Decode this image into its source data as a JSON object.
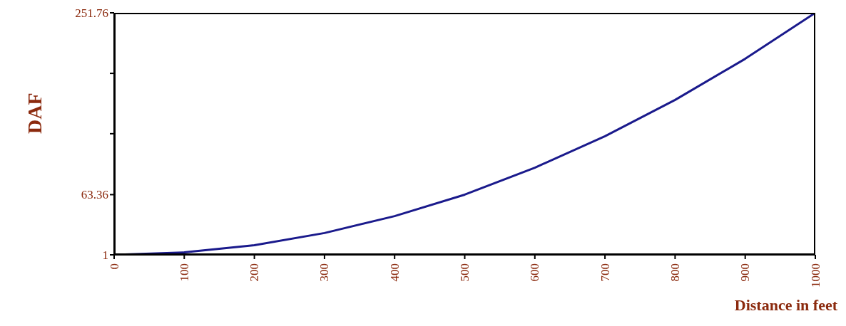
{
  "chart_data": {
    "type": "line",
    "xlabel": "Distance in feet",
    "ylabel": "DAF",
    "x": [
      0,
      100,
      200,
      300,
      400,
      500,
      600,
      700,
      800,
      900,
      1000
    ],
    "series": [
      {
        "color": "#1a1a8c",
        "values": [
          1,
          3.5,
          11,
          23.6,
          41.1,
          63.36,
          91.3,
          123.9,
          161.5,
          204.1,
          251.76
        ]
      }
    ],
    "xlim": [
      0,
      1000
    ],
    "xticks": [
      0,
      100,
      200,
      300,
      400,
      500,
      600,
      700,
      800,
      900,
      1000
    ],
    "ylim": [
      1,
      251.76
    ],
    "yticks": [
      1,
      63.36,
      {
        "value": 126.5,
        "label": null
      },
      {
        "value": 189,
        "label": null
      },
      251.76
    ],
    "grid": false,
    "legend": false,
    "marker": "none",
    "line_style": "solid"
  }
}
